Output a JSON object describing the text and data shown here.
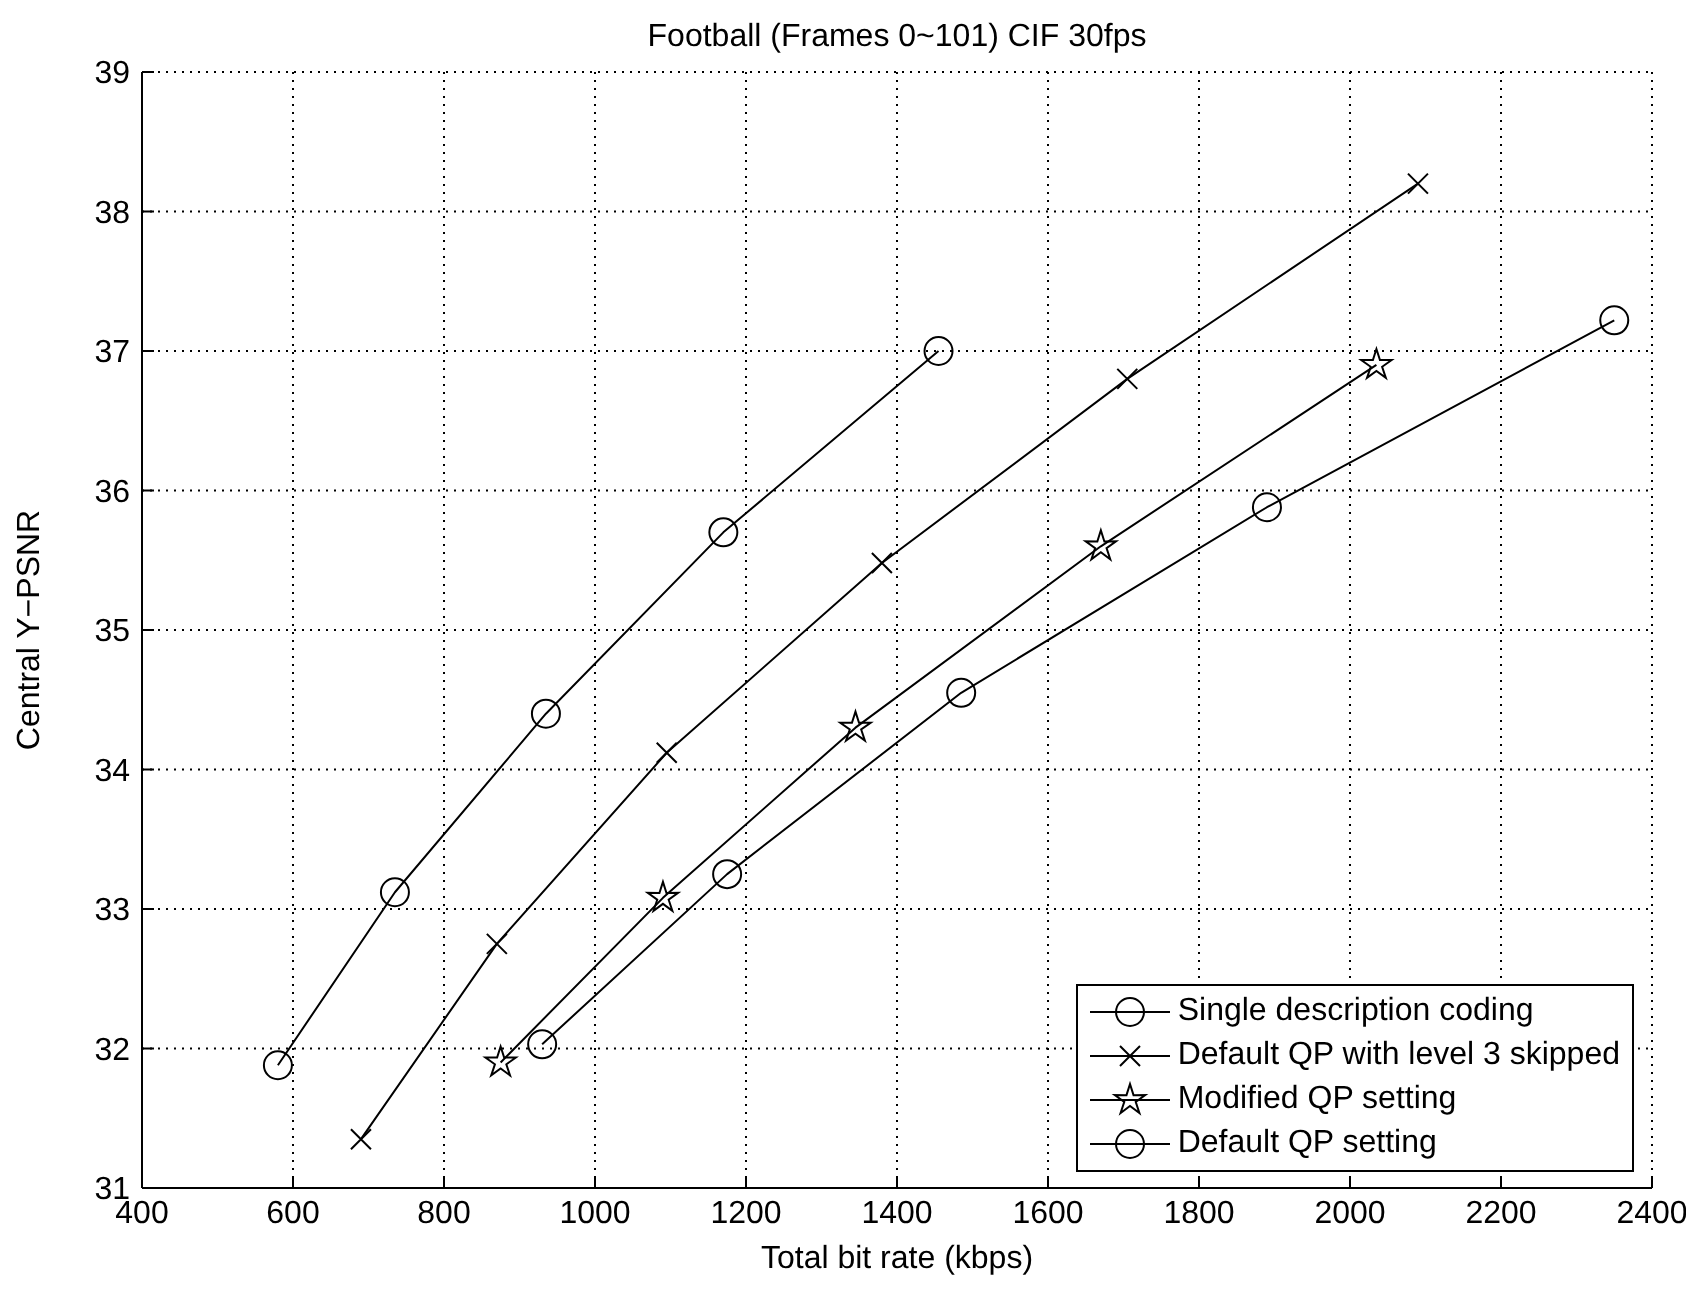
{
  "chart_data": {
    "type": "line",
    "title": "Football (Frames 0~101) CIF 30fps",
    "xlabel": "Total bit rate (kbps)",
    "ylabel": "Central Y−PSNR",
    "xlim": [
      400,
      2400
    ],
    "xticks": [
      400,
      600,
      800,
      1000,
      1200,
      1400,
      1600,
      1800,
      2000,
      2200,
      2400
    ],
    "ylim": [
      31,
      39
    ],
    "yticks": [
      31,
      32,
      33,
      34,
      35,
      36,
      37,
      38,
      39
    ],
    "grid": true,
    "legend": "bottom right",
    "line_style": "solid",
    "series": [
      {
        "name": "Single description coding",
        "color": "#000000",
        "marker": "circle",
        "x": [
          580,
          735,
          935,
          1170,
          1455
        ],
        "values": [
          31.88,
          33.12,
          34.4,
          35.7,
          37.0
        ]
      },
      {
        "name": "Default QP with level 3 skipped",
        "color": "#000000",
        "marker": "cross",
        "x": [
          690,
          870,
          1095,
          1380,
          1705,
          2090
        ],
        "values": [
          31.35,
          32.75,
          34.12,
          35.48,
          36.8,
          38.2
        ]
      },
      {
        "name": "Modified QP setting",
        "color": "#000000",
        "marker": "star",
        "x": [
          875,
          1090,
          1345,
          1670,
          2035
        ],
        "values": [
          31.9,
          33.08,
          34.3,
          35.6,
          36.9
        ]
      },
      {
        "name": "Default QP setting",
        "color": "#000000",
        "marker": "circle",
        "x": [
          930,
          1175,
          1485,
          1890,
          2350
        ],
        "values": [
          32.03,
          33.25,
          34.55,
          35.88,
          37.22
        ]
      }
    ]
  }
}
